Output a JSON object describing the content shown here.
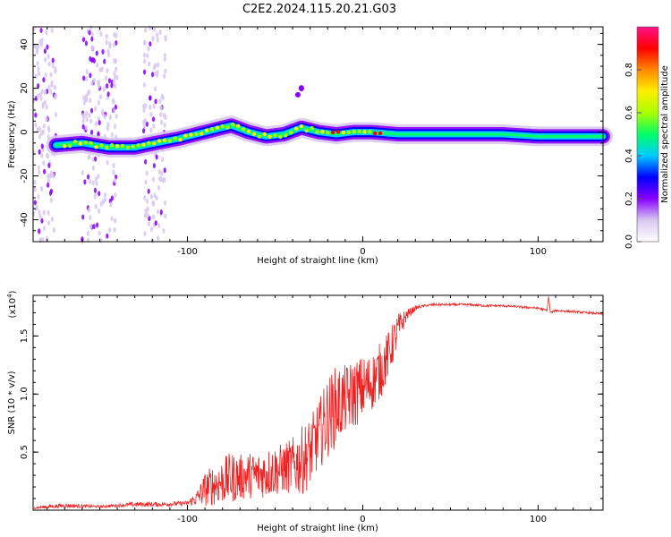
{
  "figure_title": "C2E2.2024.115.20.21.G03",
  "chart_data": [
    {
      "type": "heatmap",
      "title": "C2E2.2024.115.20.21.G03",
      "xlabel": "Height of straight line (km)",
      "ylabel": "Frequency (Hz)",
      "xlim": [
        -188,
        137
      ],
      "ylim": [
        -50,
        48
      ],
      "xticks": [
        -100,
        0,
        100
      ],
      "xtick_labels": [
        "-100",
        "0",
        "100"
      ],
      "yticks": [
        -40,
        -20,
        0,
        20,
        40
      ],
      "ytick_labels": [
        "-40",
        "-20",
        "0",
        "20",
        "40"
      ],
      "colorbar": {
        "label": "Normalized spectral amplitude",
        "range": [
          0,
          1
        ],
        "ticks": [
          0.0,
          0.2,
          0.4,
          0.6,
          0.8
        ],
        "tick_labels": [
          "0.0",
          "0.2",
          "0.4",
          "0.6",
          "0.8"
        ],
        "colors": [
          "#ffffff",
          "#d8c8f0",
          "#8800ff",
          "#0000ff",
          "#00ccff",
          "#00ff66",
          "#aaff00",
          "#ffee00",
          "#ff8800",
          "#ff0000",
          "#ff1188"
        ]
      },
      "ridge": {
        "x": [
          -175,
          -160,
          -145,
          -130,
          -118,
          -105,
          -95,
          -85,
          -75,
          -65,
          -55,
          -45,
          -35,
          -25,
          -15,
          -5,
          5,
          20,
          40,
          60,
          80,
          100,
          120,
          137
        ],
        "y": [
          -6,
          -5,
          -7,
          -7,
          -5,
          -3,
          -1,
          1,
          3,
          0,
          -2,
          -1,
          2,
          0,
          -1,
          0,
          0,
          -1,
          -1,
          -1,
          -1,
          -2,
          -2,
          -2
        ]
      },
      "noise_band_x_ranges": [
        [
          -188,
          -175
        ],
        [
          -160,
          -140
        ],
        [
          -125,
          -112
        ]
      ],
      "isolated_feature": {
        "x": -35,
        "y": 20
      }
    },
    {
      "type": "line",
      "xlabel": "Height of straight line (km)",
      "ylabel": "SNR (10 * v/v)",
      "y_multiplier_label": "(x10",
      "y_multiplier_exponent": "4",
      "xlim": [
        -188,
        137
      ],
      "ylim": [
        0,
        1.85
      ],
      "xticks": [
        -100,
        0,
        100
      ],
      "xtick_labels": [
        "-100",
        "0",
        "100"
      ],
      "yticks": [
        0.5,
        1.0,
        1.5
      ],
      "ytick_labels": [
        "0.5",
        "1.0",
        "1.5"
      ],
      "color": "#ee2222",
      "series": [
        {
          "name": "SNR",
          "x": [
            -188,
            -170,
            -150,
            -130,
            -115,
            -100,
            -95,
            -90,
            -85,
            -80,
            -75,
            -70,
            -65,
            -60,
            -55,
            -50,
            -45,
            -40,
            -35,
            -30,
            -25,
            -20,
            -15,
            -10,
            -5,
            0,
            5,
            10,
            15,
            20,
            25,
            30,
            35,
            40,
            50,
            60,
            70,
            80,
            90,
            100,
            105,
            106,
            107,
            110,
            120,
            137
          ],
          "values": [
            0.02,
            0.04,
            0.03,
            0.05,
            0.05,
            0.06,
            0.1,
            0.18,
            0.22,
            0.25,
            0.28,
            0.28,
            0.3,
            0.3,
            0.32,
            0.34,
            0.36,
            0.38,
            0.42,
            0.5,
            0.65,
            0.8,
            0.9,
            0.95,
            1.0,
            1.05,
            1.1,
            1.2,
            1.35,
            1.55,
            1.68,
            1.74,
            1.76,
            1.77,
            1.77,
            1.77,
            1.76,
            1.76,
            1.75,
            1.74,
            1.72,
            1.84,
            1.7,
            1.72,
            1.71,
            1.69
          ],
          "noise_amplitude": [
            0.01,
            0.02,
            0.01,
            0.02,
            0.02,
            0.02,
            0.06,
            0.15,
            0.18,
            0.2,
            0.22,
            0.2,
            0.2,
            0.2,
            0.22,
            0.22,
            0.22,
            0.25,
            0.3,
            0.3,
            0.3,
            0.35,
            0.35,
            0.3,
            0.3,
            0.28,
            0.25,
            0.25,
            0.2,
            0.15,
            0.05,
            0.02,
            0.01,
            0.01,
            0.01,
            0.01,
            0.01,
            0.01,
            0.01,
            0.01,
            0.01,
            0.0,
            0.01,
            0.01,
            0.01,
            0.01
          ]
        }
      ]
    }
  ]
}
